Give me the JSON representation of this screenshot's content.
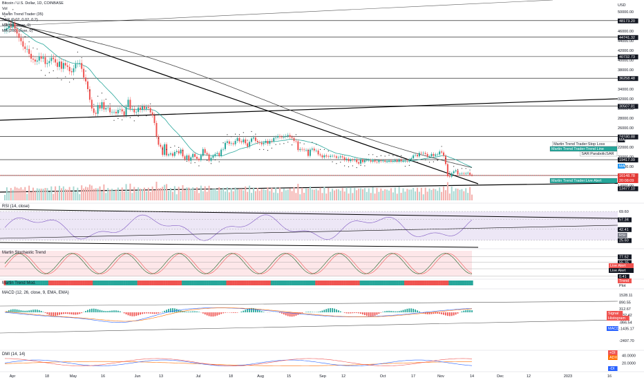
{
  "colors": {
    "up": "#26a69a",
    "down": "#ef5350",
    "upVol": "#f4b0ad",
    "downVol": "#f4b0ad",
    "ema20": "#26a69a",
    "ma200": "#444444",
    "sar": "#222222",
    "hline": "#000000",
    "red_line": "#e53935",
    "pane_bg": "#ede7f6",
    "stoch_bg": "#fde7e9",
    "macd": "#2962ff",
    "signal": "#ff6d00",
    "plus_di": "#2962ff",
    "minus_di": "#ef5350"
  },
  "header": {
    "title": "Bitcoin / U.S. Dollar, 1D, COINBASE",
    "vol": "Vol",
    "indicators": [
      "Martin Trend Trader (35)",
      "SAR (0.02, 0.02, 0.2)",
      "MA (20, close, 0)",
      "MA (200, close, 0)"
    ]
  },
  "chart_data": [
    {
      "type": "candlestick",
      "title": "Bitcoin / U.S. Dollar, 1D, COINBASE",
      "price_axis_ticks": [
        "50000.00",
        "48000.00",
        "46000.00",
        "44000.00",
        "42000.00",
        "40000.00",
        "38000.00",
        "36000.00",
        "34000.00",
        "32000.00",
        "30000.00",
        "28000.00",
        "26000.00",
        "24000.00",
        "22000.00",
        "20000.00",
        "18000.00",
        "16000.00",
        "14000.00"
      ],
      "price_axis_label": "USD",
      "levels": [
        48173.2,
        44741.32,
        40732.73,
        36258.48,
        30507.81,
        24180.88,
        19417.09,
        16148.78,
        13477.1
      ],
      "close_label_values": [
        "16148.78",
        "20:08:09"
      ],
      "x_labels": [
        "Apr",
        "18",
        "May",
        "16",
        "Jun",
        "13",
        "Jul",
        "18",
        "Aug",
        "15",
        "Sep",
        "12",
        "Oct",
        "17",
        "Nov",
        "14",
        "Dec",
        "12",
        "2023",
        "16"
      ],
      "closes": [
        46300,
        46600,
        47100,
        46900,
        47600,
        46500,
        45500,
        44600,
        43900,
        42800,
        42300,
        42300,
        41300,
        40300,
        40100,
        39700,
        39900,
        40800,
        40300,
        40600,
        39200,
        39400,
        39800,
        40500,
        40200,
        39500,
        38600,
        39700,
        38200,
        39400,
        38900,
        38600,
        37700,
        37500,
        38300,
        39200,
        39300,
        39400,
        38200,
        36400,
        35600,
        34000,
        31800,
        30000,
        29100,
        28900,
        30700,
        30000,
        31300,
        29800,
        30100,
        30200,
        29200,
        29300,
        29300,
        29000,
        29700,
        29800,
        29400,
        28600,
        30300,
        31800,
        29900,
        29900,
        29200,
        29300,
        30200,
        29700,
        30400,
        29900,
        30300,
        30100,
        29200,
        28600,
        27000,
        24200,
        22500,
        22100,
        20400,
        22600,
        20300,
        20500,
        20700,
        20200,
        21000,
        21200,
        20700,
        21500,
        20100,
        19500,
        20300,
        19200,
        19900,
        20600,
        20000,
        19600,
        19300,
        20300,
        21600,
        20800,
        20500,
        19200,
        19800,
        20200,
        20600,
        20800,
        20200,
        21500,
        21600,
        22900,
        23200,
        22700,
        22800,
        22600,
        23300,
        23900,
        23200,
        23000,
        23600,
        22800,
        22100,
        23100,
        23800,
        24000,
        23300,
        23000,
        22900,
        22600,
        22900,
        23300,
        22700,
        23300,
        23200,
        23900,
        24000,
        24300,
        24100,
        24000,
        24200,
        24300,
        24500,
        24100,
        23900,
        23300,
        23200,
        21400,
        21600,
        21500,
        21400,
        21400,
        20200,
        21500,
        21700,
        21300,
        21300,
        20500,
        20300,
        19900,
        20300,
        20100,
        20000,
        20200,
        20200,
        20100,
        19800,
        19900,
        20100,
        19900,
        19300,
        19600,
        19100,
        19400,
        19300,
        19500,
        18900,
        18600,
        19400,
        18900,
        19300,
        19300,
        19300,
        19000,
        19300,
        19000,
        18900,
        19200,
        19100,
        19200,
        19000,
        19000,
        19200,
        19000,
        19100,
        19300,
        19000,
        19400,
        19100,
        19100,
        19200,
        19100,
        19400,
        19700,
        20300,
        20400,
        20100,
        20800,
        20700,
        20800,
        20600,
        20100,
        20100,
        20600,
        20200,
        20500,
        20500,
        21100,
        20900,
        20200,
        18500,
        16000,
        15900,
        16600,
        17000,
        17200,
        16400,
        16500,
        16600,
        16500,
        16600,
        16700,
        16300,
        16200
      ],
      "series": [
        {
          "name": "Martin Trend Trader:Stop Loss"
        },
        {
          "name": "Martin Trend Trader:Trend Line"
        },
        {
          "name": "SAR:ParabolicSAR"
        },
        {
          "name": "Martin Trend Trader:Live Alert"
        }
      ],
      "legend_badges": [
        "MA",
        "MA"
      ]
    },
    {
      "type": "line",
      "pane": "RSI",
      "title": "RSI (14, close)",
      "levels": [
        69.6,
        57.34,
        42.41,
        25.6
      ],
      "badge": "RSI"
    },
    {
      "type": "line",
      "pane": "Stochastic",
      "title": "Martin Stochastic Trend",
      "levels": [
        77.52,
        55.35,
        29.7,
        0.41
      ],
      "level_badge": "40.00",
      "alerts": [
        "Live Alert",
        "Live Alert"
      ]
    },
    {
      "type": "bar",
      "pane": "Trend",
      "title": "Martin Trend Mod.",
      "badges": [
        "Trend",
        "Plot"
      ]
    },
    {
      "type": "line",
      "pane": "MACD",
      "title": "MACD (12, 26, close, 9, EMA, EMA)",
      "levels": [
        1528.11,
        890.55,
        312.67,
        -232.42,
        -866.54,
        -1435.17,
        -2497.7
      ],
      "badges": [
        "Signal",
        "Histogram",
        "MACD"
      ]
    },
    {
      "type": "line",
      "pane": "DMI",
      "title": "DMI (14, 14)",
      "ticks": [
        "40.0000",
        "20.0000"
      ],
      "badges": [
        "+DI",
        "ADX",
        "-DI"
      ]
    }
  ]
}
